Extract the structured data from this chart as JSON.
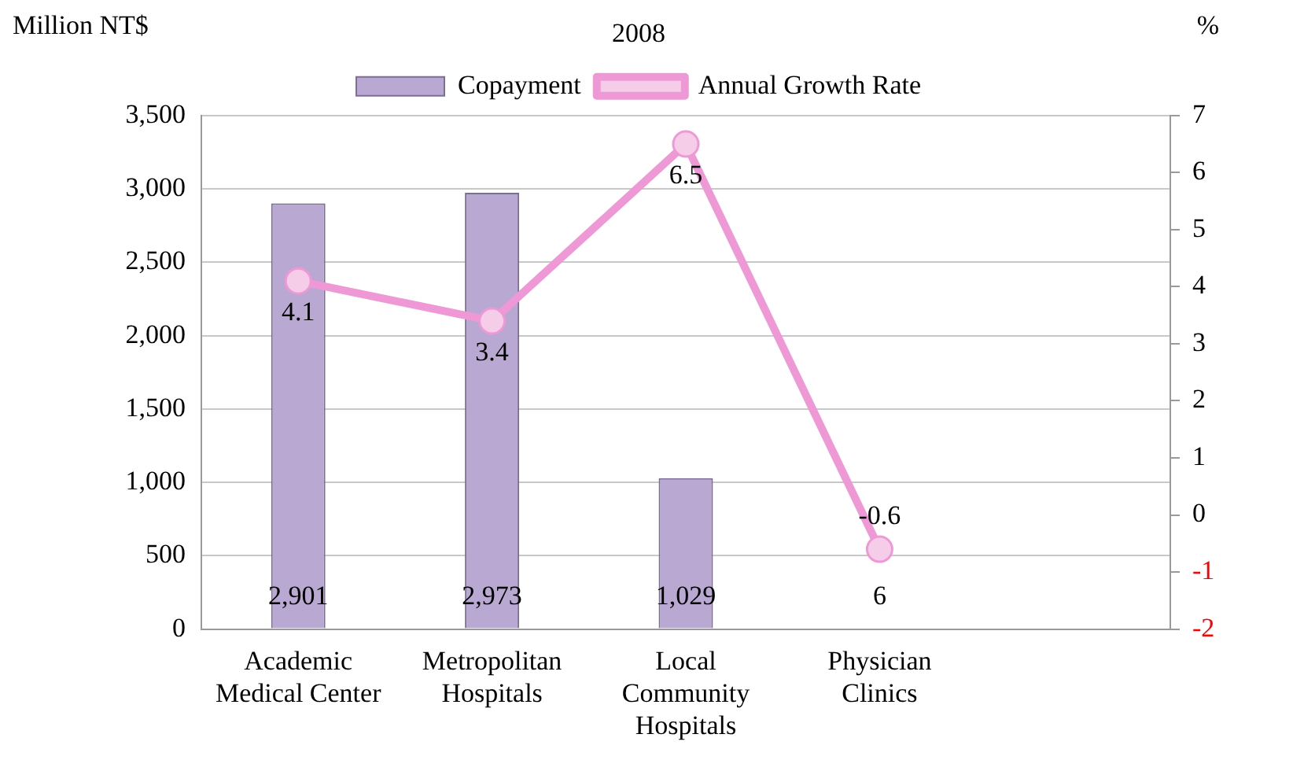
{
  "chart_data": {
    "type": "bar",
    "title": "2008",
    "ylabel": "Million NT$",
    "y2label": "%",
    "categories": [
      "Academic Medical Center",
      "Metropolitan Hospitals",
      "Local Community Hospitals",
      "Physician Clinics",
      null
    ],
    "series": [
      {
        "name": "Copayment",
        "color": "#b9a8d2",
        "values": [
          2901,
          2973,
          1029,
          6,
          null
        ],
        "value_labels": [
          "2,901",
          "2,973",
          "1,029",
          "6",
          null
        ]
      },
      {
        "name": "Annual Growth Rate",
        "type": "line",
        "axis": "y2",
        "color": "#ee99d6",
        "values": [
          4.1,
          3.4,
          6.5,
          -0.6,
          null
        ]
      }
    ],
    "ylim": [
      0,
      3500
    ],
    "yticks": [
      0,
      500,
      {
        "value": 1000,
        "label": "1,000"
      },
      {
        "value": 1500,
        "label": "1,500"
      },
      {
        "value": 2000,
        "label": "2,000"
      },
      {
        "value": 2500,
        "label": "2,500"
      },
      {
        "value": 3000,
        "label": "3,000"
      },
      {
        "value": 3500,
        "label": "3,500"
      }
    ],
    "y2lim": [
      -2,
      7
    ],
    "y2ticks": [
      -2,
      -1,
      0,
      1,
      2,
      3,
      4,
      5,
      6,
      7
    ],
    "data_labels": true,
    "grid": "y",
    "legend": "top",
    "marker": "circle"
  }
}
